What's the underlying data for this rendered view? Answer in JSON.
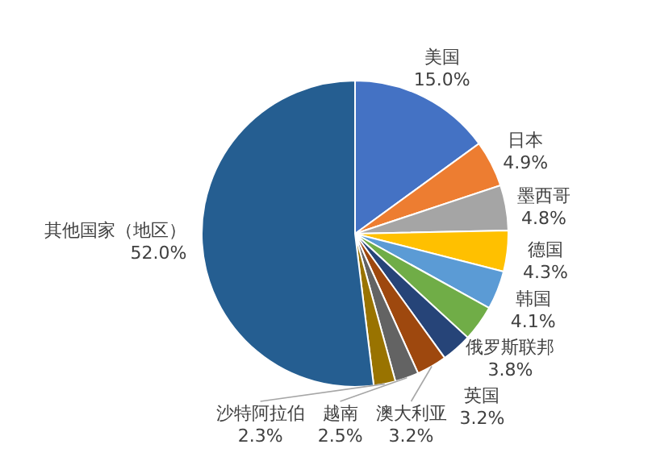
{
  "chart_data": {
    "type": "pie",
    "categories": [
      "美国",
      "日本",
      "墨西哥",
      "德国",
      "韩国",
      "俄罗斯联邦",
      "英国",
      "澳大利亚",
      "越南",
      "沙特阿拉伯",
      "其他国家（地区）"
    ],
    "values": [
      15.0,
      4.9,
      4.8,
      4.3,
      4.1,
      3.8,
      3.2,
      3.2,
      2.5,
      2.3,
      52.0
    ],
    "value_labels": [
      "15.0%",
      "4.9%",
      "4.8%",
      "4.3%",
      "4.1%",
      "3.8%",
      "3.2%",
      "3.2%",
      "2.5%",
      "2.3%",
      "52.0%"
    ],
    "colors": [
      "#4472c4",
      "#ed7d31",
      "#a5a5a5",
      "#ffc000",
      "#5b9bd5",
      "#70ad47",
      "#264478",
      "#9e480e",
      "#636363",
      "#997300",
      "#255e91"
    ]
  }
}
